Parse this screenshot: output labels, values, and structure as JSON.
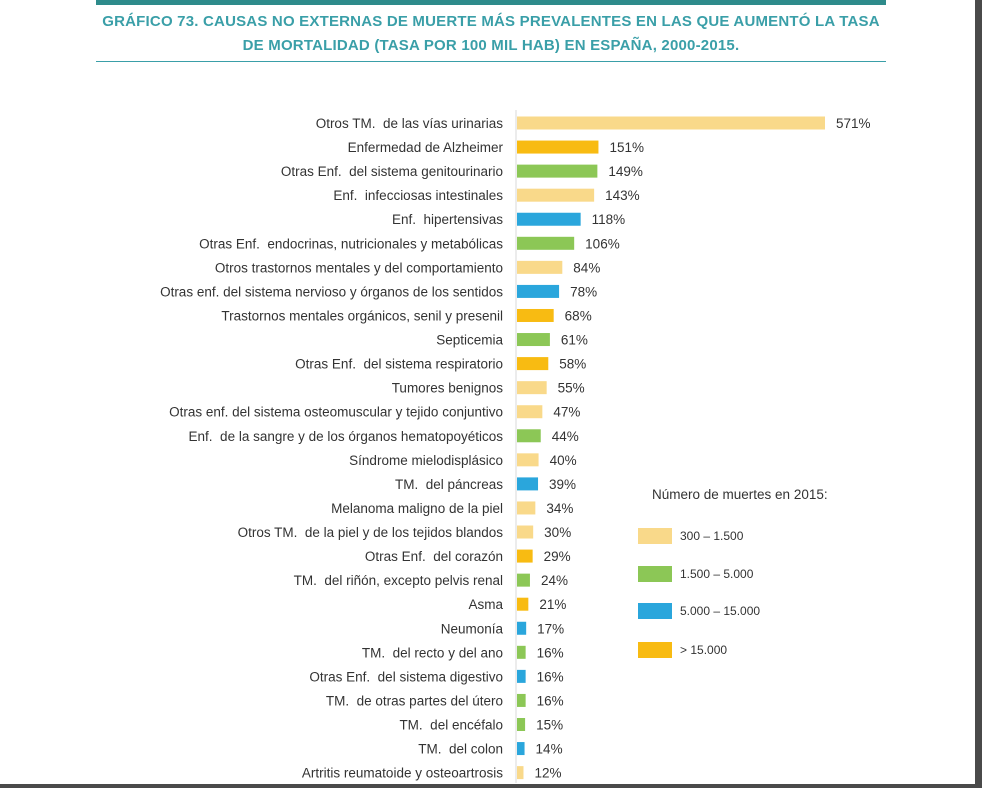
{
  "title": "GRÁFICO 73. CAUSAS NO EXTERNAS DE MUERTE MÁS PREVALENTES EN LAS QUE AUMENTÓ LA TASA DE MORTALIDAD (TASA POR 100 MIL HAB) EN ESPAÑA, 2000-2015.",
  "title_line1": "GRÁFICO 73. CAUSAS NO EXTERNAS DE MUERTE MÁS PREVALENTES EN LAS QUE AUMENTÓ LA TASA",
  "title_line2": "DE MORTALIDAD (TASA POR 100 MIL HAB) EN ESPAÑA, 2000-2015.",
  "colors": {
    "title": "#3a9fa8",
    "light_yellow": "#f9d98a",
    "green": "#8cc756",
    "blue": "#2aa6dc",
    "orange": "#f8bb12"
  },
  "legend": {
    "title": "Número de muertes en 2015:",
    "items": [
      {
        "label": "300 – 1.500",
        "color": "#f9d98a"
      },
      {
        "label": "1.500 – 5.000",
        "color": "#8cc756"
      },
      {
        "label": "5.000 – 15.000",
        "color": "#2aa6dc"
      },
      {
        "label": "> 15.000",
        "color": "#f8bb12"
      }
    ]
  },
  "chart_data": {
    "type": "bar",
    "orientation": "horizontal",
    "title": "GRÁFICO 73. CAUSAS NO EXTERNAS DE MUERTE MÁS PREVALENTES EN LAS QUE AUMENTÓ LA TASA DE MORTALIDAD (TASA POR 100 MIL HAB) EN ESPAÑA, 2000-2015.",
    "xlabel": "",
    "ylabel": "",
    "value_suffix": "%",
    "grid": false,
    "legend_position": "right",
    "categories": [
      "Otros TM.  de las vías urinarias",
      "Enfermedad de Alzheimer",
      "Otras Enf.  del sistema genitourinario",
      "Enf.  infecciosas intestinales",
      "Enf.  hipertensivas",
      "Otras Enf.  endocrinas, nutricionales y metabólicas",
      "Otros trastornos mentales y del comportamiento",
      "Otras enf. del sistema nervioso y órganos de los sentidos",
      "Trastornos mentales orgánicos, senil y presenil",
      "Septicemia",
      "Otras Enf.  del sistema respiratorio",
      "Tumores benignos",
      "Otras enf. del sistema osteomuscular y tejido conjuntivo",
      "Enf.  de la sangre y de los órganos hematopoyéticos",
      "Síndrome mielodisplásico",
      "TM.  del páncreas",
      "Melanoma maligno de la piel",
      "Otros TM.  de la piel y de los tejidos blandos",
      "Otras Enf.  del corazón",
      "TM.  del riñón, excepto pelvis renal",
      "Asma",
      "Neumonía",
      "TM.  del recto y del ano",
      "Otras Enf.  del sistema digestivo",
      "TM.  de otras partes del útero",
      "TM.  del encéfalo",
      "TM.  del colon",
      "Artritis reumatoide y osteoartrosis"
    ],
    "values": [
      571,
      151,
      149,
      143,
      118,
      106,
      84,
      78,
      68,
      61,
      58,
      55,
      47,
      44,
      40,
      39,
      34,
      30,
      29,
      24,
      21,
      17,
      16,
      16,
      16,
      15,
      14,
      12
    ],
    "groups": [
      "300 – 1.500",
      "> 15.000",
      "1.500 – 5.000",
      "300 – 1.500",
      "5.000 – 15.000",
      "1.500 – 5.000",
      "300 – 1.500",
      "5.000 – 15.000",
      "> 15.000",
      "1.500 – 5.000",
      "> 15.000",
      "300 – 1.500",
      "300 – 1.500",
      "1.500 – 5.000",
      "300 – 1.500",
      "5.000 – 15.000",
      "300 – 1.500",
      "300 – 1.500",
      "> 15.000",
      "1.500 – 5.000",
      "> 15.000",
      "5.000 – 15.000",
      "1.500 – 5.000",
      "5.000 – 15.000",
      "1.500 – 5.000",
      "1.500 – 5.000",
      "5.000 – 15.000",
      "300 – 1.500"
    ],
    "colors": [
      "#f9d98a",
      "#f8bb12",
      "#8cc756",
      "#f9d98a",
      "#2aa6dc",
      "#8cc756",
      "#f9d98a",
      "#2aa6dc",
      "#f8bb12",
      "#8cc756",
      "#f8bb12",
      "#f9d98a",
      "#f9d98a",
      "#8cc756",
      "#f9d98a",
      "#2aa6dc",
      "#f9d98a",
      "#f9d98a",
      "#f8bb12",
      "#8cc756",
      "#f8bb12",
      "#2aa6dc",
      "#8cc756",
      "#2aa6dc",
      "#8cc756",
      "#8cc756",
      "#2aa6dc",
      "#f9d98a"
    ]
  }
}
